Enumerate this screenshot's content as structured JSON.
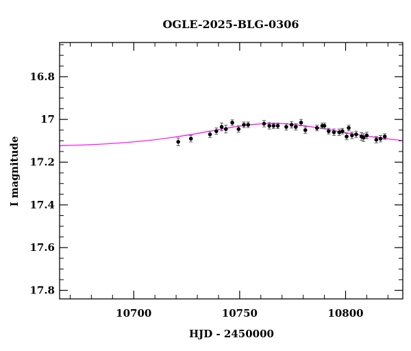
{
  "chart_data": {
    "type": "scatter",
    "title": "OGLE-2025-BLG-0306",
    "xlabel": "HJD - 2450000",
    "ylabel": "I magnitude",
    "xlim": [
      10665,
      10827
    ],
    "ylim": [
      17.84,
      16.64
    ],
    "y_inverted": true,
    "x_major_ticks": [
      10700,
      10750,
      10800
    ],
    "x_minor_step": 10,
    "y_major_ticks": [
      16.8,
      17,
      17.2,
      17.4,
      17.6,
      17.8
    ],
    "y_tick_labels": [
      "16.8",
      "17",
      "17.2",
      "17.4",
      "17.6",
      "17.8"
    ],
    "y_minor_step": 0.05,
    "grid": false,
    "colors": {
      "points": "#000000",
      "model": "#ff00ff",
      "axes": "#000000"
    },
    "series": [
      {
        "name": "observations",
        "kind": "points-with-errorbars",
        "x": [
          10721.0,
          10727.0,
          10736.0,
          10739.0,
          10741.5,
          10743.5,
          10746.5,
          10749.5,
          10752.0,
          10754.0,
          10761.5,
          10764.0,
          10766.0,
          10768.0,
          10772.0,
          10774.5,
          10776.5,
          10779.0,
          10781.0,
          10786.5,
          10789.0,
          10790.0,
          10792.0,
          10794.5,
          10797.0,
          10798.5,
          10800.5,
          10801.5,
          10803.0,
          10805.0,
          10807.5,
          10808.5,
          10810.0,
          10814.5,
          10816.5,
          10818.5
        ],
        "y": [
          17.105,
          17.09,
          17.07,
          17.055,
          17.035,
          17.045,
          17.015,
          17.045,
          17.025,
          17.025,
          17.02,
          17.03,
          17.03,
          17.03,
          17.035,
          17.025,
          17.035,
          17.015,
          17.05,
          17.04,
          17.03,
          17.03,
          17.055,
          17.06,
          17.06,
          17.055,
          17.08,
          17.04,
          17.075,
          17.07,
          17.08,
          17.085,
          17.075,
          17.095,
          17.09,
          17.08
        ],
        "err": [
          0.018,
          0.015,
          0.015,
          0.015,
          0.018,
          0.018,
          0.013,
          0.015,
          0.013,
          0.013,
          0.015,
          0.015,
          0.013,
          0.013,
          0.015,
          0.015,
          0.015,
          0.015,
          0.015,
          0.013,
          0.013,
          0.013,
          0.013,
          0.015,
          0.015,
          0.013,
          0.015,
          0.013,
          0.015,
          0.015,
          0.018,
          0.018,
          0.015,
          0.015,
          0.015,
          0.013
        ]
      },
      {
        "name": "model",
        "kind": "line",
        "x": [
          10665,
          10680,
          10695,
          10710,
          10725,
          10740,
          10750,
          10760,
          10770,
          10780,
          10790,
          10800,
          10810,
          10820,
          10827
        ],
        "y": [
          17.123,
          17.118,
          17.109,
          17.095,
          17.074,
          17.048,
          17.031,
          17.021,
          17.02,
          17.029,
          17.044,
          17.062,
          17.078,
          17.091,
          17.099
        ]
      }
    ]
  }
}
